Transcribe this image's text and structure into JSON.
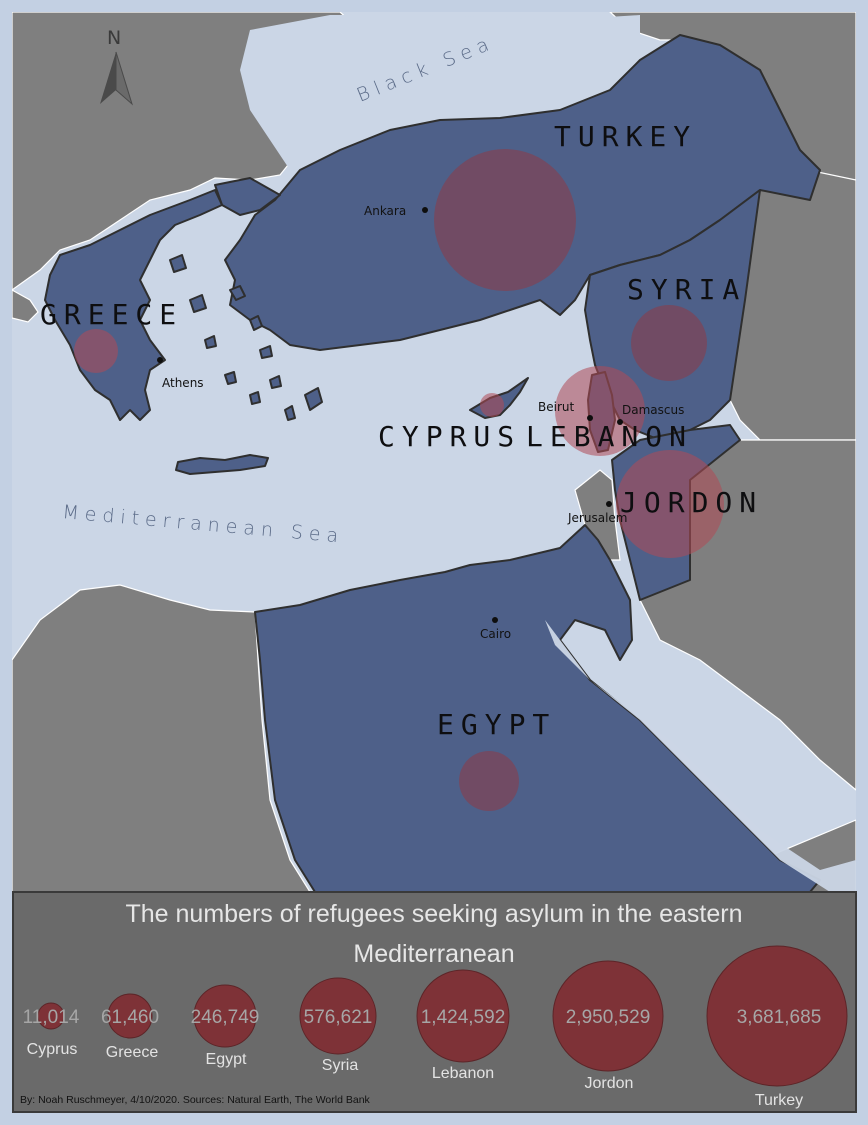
{
  "map": {
    "seas": {
      "black_sea": "Black Sea",
      "mediterranean": "Mediterranean Sea"
    },
    "countries": {
      "turkey": "TURKEY",
      "syria": "SYRIA",
      "greece": "GREECE",
      "cyprus": "CYPRUS",
      "lebanon": "LEBANON",
      "jordon": "JORDON",
      "egypt": "EGYPT"
    },
    "cities": {
      "ankara": "Ankara",
      "athens": "Athens",
      "beirut": "Beirut",
      "damascus": "Damascus",
      "jerusalem": "Jerusalem",
      "cairo": "Cairo"
    },
    "north_arrow": "N",
    "colors": {
      "water": "#cbd6e6",
      "other_land": "#7f7f7f",
      "highlight_land": "#4e6089",
      "refugee_bubble": "#8e3a45"
    }
  },
  "legend": {
    "title_line1": "The numbers of refugees seeking asylum in the eastern",
    "title_line2": "Mediterranean",
    "items": [
      {
        "value": "11,014",
        "name": "Cyprus"
      },
      {
        "value": "61,460",
        "name": "Greece"
      },
      {
        "value": "246,749",
        "name": "Egypt"
      },
      {
        "value": "576,621",
        "name": "Syria"
      },
      {
        "value": "1,424,592",
        "name": "Lebanon"
      },
      {
        "value": "2,950,529",
        "name": "Jordon"
      },
      {
        "value": "3,681,685",
        "name": "Turkey"
      }
    ]
  },
  "credit": "By: Noah Ruschmeyer, 4/10/2020. Sources: Natural Earth, The World Bank"
}
